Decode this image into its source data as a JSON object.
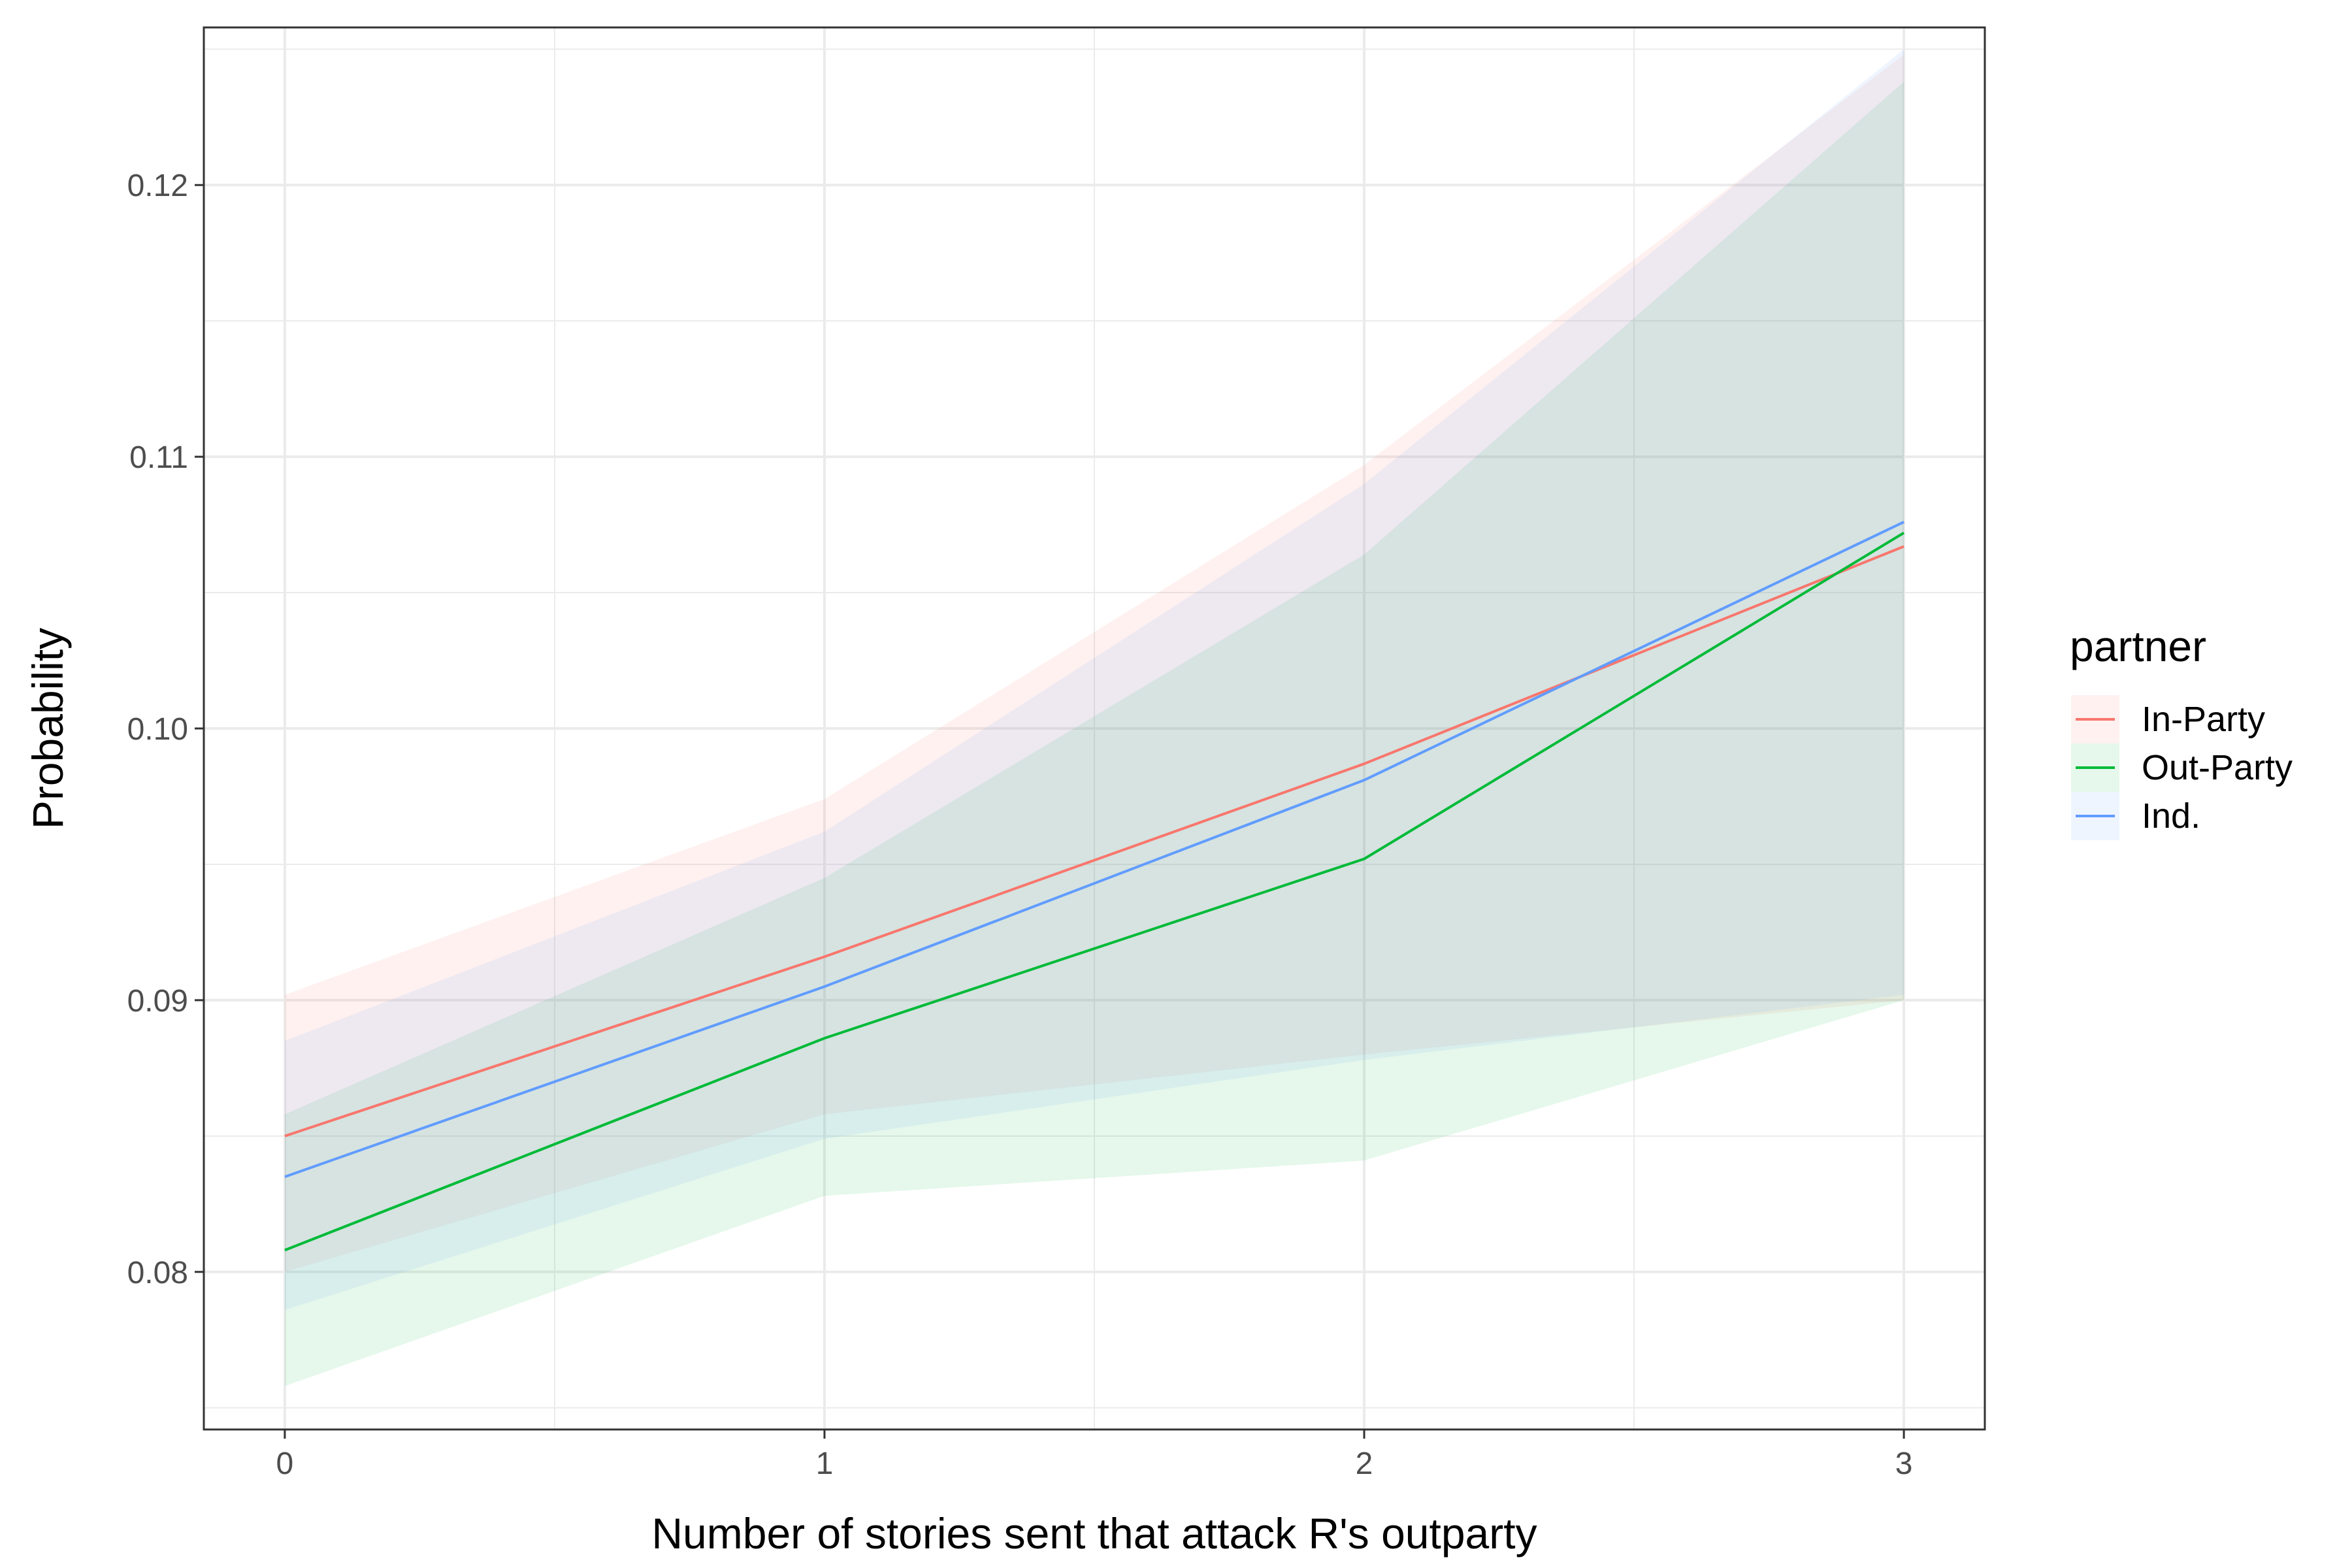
{
  "chart_data": {
    "type": "line",
    "xlabel": "Number of stories sent that attack R's outparty",
    "ylabel": "Probability",
    "x": [
      0,
      1,
      2,
      3
    ],
    "xlim": [
      -0.15,
      3.15
    ],
    "ylim": [
      0.0742,
      0.1258
    ],
    "x_ticks": [
      0,
      1,
      2,
      3
    ],
    "x_minor_ticks": [
      0.5,
      1.5,
      2.5
    ],
    "y_ticks": [
      0.08,
      0.09,
      0.1,
      0.11,
      0.12
    ],
    "y_tick_labels": [
      "0.08",
      "0.09",
      "0.10",
      "0.11",
      "0.12"
    ],
    "y_minor_ticks": [
      0.075,
      0.085,
      0.095,
      0.105,
      0.115,
      0.125
    ],
    "grid": true,
    "legend": {
      "title": "partner",
      "placement": "right"
    },
    "series": [
      {
        "name": "In-Party",
        "color": "#F8766D",
        "values": [
          0.085,
          0.0916,
          0.0987,
          0.1067
        ],
        "lower": [
          0.08,
          0.0858,
          0.088,
          0.09
        ],
        "upper": [
          0.0902,
          0.0974,
          0.1097,
          0.1248
        ]
      },
      {
        "name": "Out-Party",
        "color": "#00BA38",
        "values": [
          0.0808,
          0.0886,
          0.0952,
          0.1072
        ],
        "lower": [
          0.0758,
          0.0828,
          0.0841,
          0.09
        ],
        "upper": [
          0.0858,
          0.0945,
          0.1064,
          0.1238
        ]
      },
      {
        "name": "Ind.",
        "color": "#619CFF",
        "values": [
          0.0835,
          0.0905,
          0.0981,
          0.1076
        ],
        "lower": [
          0.0786,
          0.0849,
          0.0878,
          0.0902
        ],
        "upper": [
          0.0885,
          0.0962,
          0.109,
          0.125
        ]
      }
    ]
  }
}
